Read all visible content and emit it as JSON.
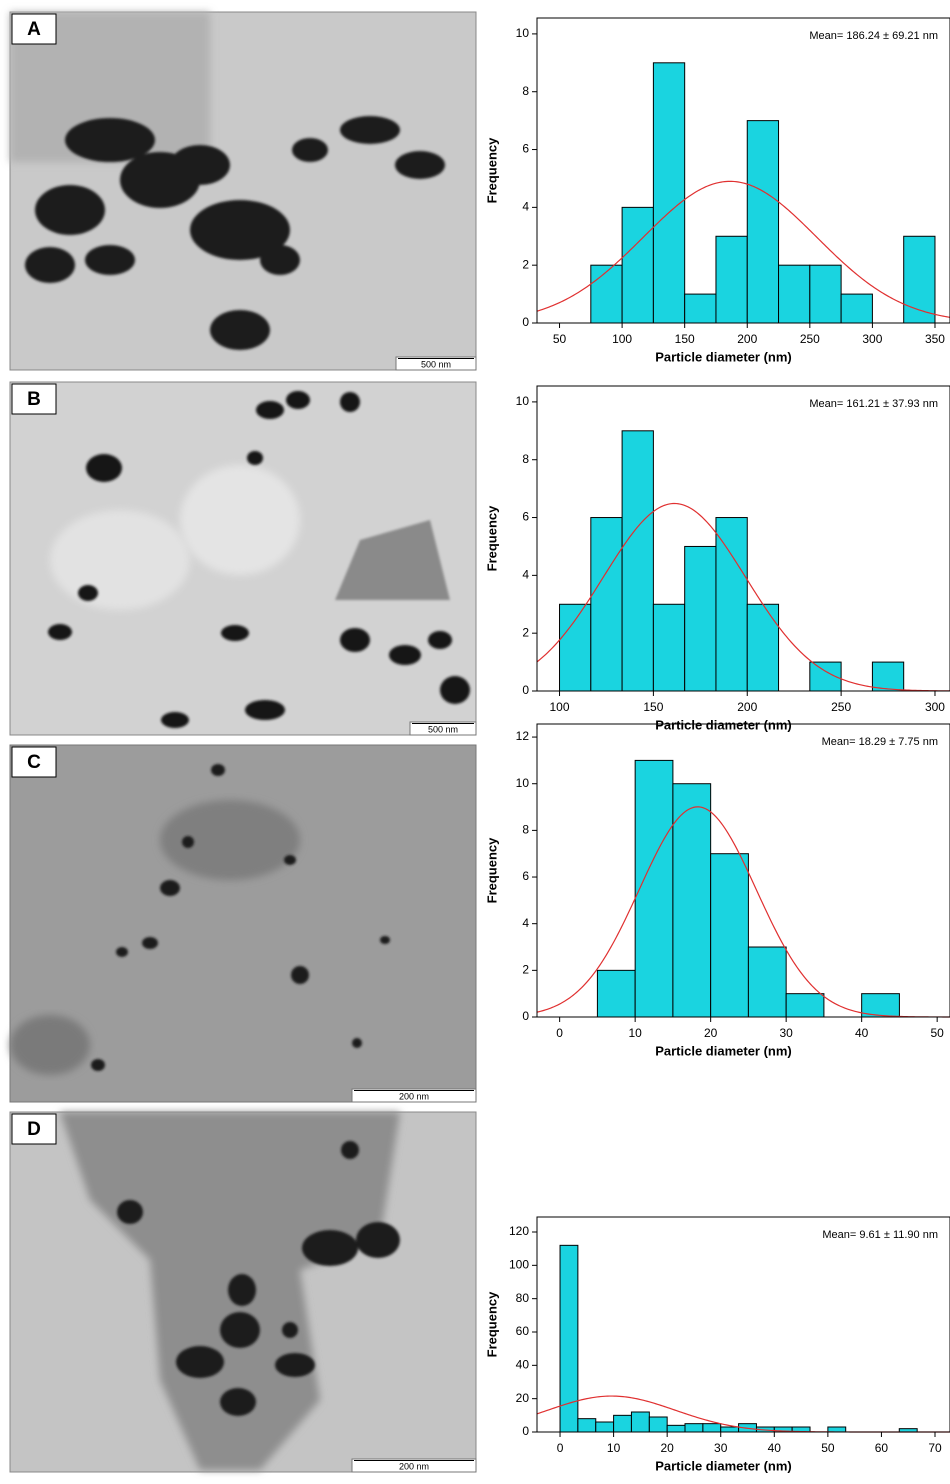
{
  "panels": [
    {
      "label": "A",
      "scale_bar": "500 nm"
    },
    {
      "label": "B",
      "scale_bar": "500 nm"
    },
    {
      "label": "C",
      "scale_bar": "200 nm"
    },
    {
      "label": "D",
      "scale_bar": "200 nm"
    }
  ],
  "chart_data": [
    {
      "type": "histogram",
      "annotation": "Mean= 186.24 ± 69.21 nm",
      "xlabel": "Particle diameter (nm)",
      "ylabel": "Frequency",
      "bins": [
        75,
        100,
        125,
        150,
        175,
        200,
        225,
        250,
        275,
        300,
        325,
        350
      ],
      "values": [
        2,
        4,
        9,
        1,
        3,
        7,
        2,
        2,
        1,
        0,
        3
      ],
      "color": "#1ad4e0",
      "fit": {
        "mean": 186.24,
        "sd": 69.21,
        "color": "#e03030"
      },
      "xlim": [
        32,
        362
      ],
      "ylim": [
        0,
        10.55
      ],
      "xticks": [
        50,
        100,
        150,
        200,
        250,
        300,
        350
      ],
      "yticks": [
        0,
        2,
        4,
        6,
        8,
        10
      ]
    },
    {
      "type": "histogram",
      "annotation": "Mean= 161.21 ± 37.93 nm",
      "xlabel": "Particle diameter (nm)",
      "ylabel": "Frequency",
      "bins": [
        100,
        116.67,
        133.33,
        150,
        166.67,
        183.33,
        200,
        216.67,
        233.33,
        250,
        266.67,
        283.33
      ],
      "values": [
        3,
        6,
        9,
        3,
        5,
        6,
        3,
        0,
        1,
        0,
        1
      ],
      "color": "#1ad4e0",
      "fit": {
        "mean": 161.21,
        "sd": 37.93,
        "color": "#e03030"
      },
      "xlim": [
        88,
        308
      ],
      "ylim": [
        0,
        10.55
      ],
      "xticks": [
        100,
        150,
        200,
        250,
        300
      ],
      "yticks": [
        0,
        2,
        4,
        6,
        8,
        10
      ]
    },
    {
      "type": "histogram",
      "annotation": "Mean= 18.29 ± 7.75 nm",
      "xlabel": "Particle diameter (nm)",
      "ylabel": "Frequency",
      "bins": [
        5,
        10,
        15,
        20,
        25,
        30,
        35,
        40,
        45
      ],
      "values": [
        2,
        11,
        10,
        7,
        3,
        1,
        0,
        1
      ],
      "color": "#1ad4e0",
      "fit": {
        "mean": 18.29,
        "sd": 7.75,
        "color": "#e03030"
      },
      "xlim": [
        -3,
        51.7
      ],
      "ylim": [
        0,
        12.56
      ],
      "xticks": [
        0,
        10,
        20,
        30,
        40,
        50
      ],
      "yticks": [
        0,
        2,
        4,
        6,
        8,
        10,
        12
      ]
    },
    {
      "type": "histogram",
      "annotation": "Mean= 9.61 ± 11.90 nm",
      "xlabel": "Particle diameter (nm)",
      "ylabel": "Frequency",
      "bins": [
        0,
        3.33,
        6.67,
        10,
        13.33,
        16.67,
        20,
        23.33,
        26.67,
        30,
        33.33,
        36.67,
        40,
        43.33,
        46.67,
        50,
        53.33,
        56.67,
        60,
        63.33,
        66.67
      ],
      "values": [
        112,
        8,
        6,
        10,
        12,
        9,
        4,
        5,
        5,
        3,
        5,
        3,
        3,
        3,
        0,
        3,
        0,
        0,
        0,
        2
      ],
      "color": "#1ad4e0",
      "fit": {
        "mean": 9.61,
        "sd": 11.9,
        "color": "#e03030"
      },
      "xlim": [
        -4.3,
        72.8
      ],
      "ylim": [
        0,
        129
      ],
      "xticks": [
        0,
        10,
        20,
        30,
        40,
        50,
        60,
        70
      ],
      "yticks": [
        0,
        20,
        40,
        60,
        80,
        100,
        120
      ]
    }
  ]
}
